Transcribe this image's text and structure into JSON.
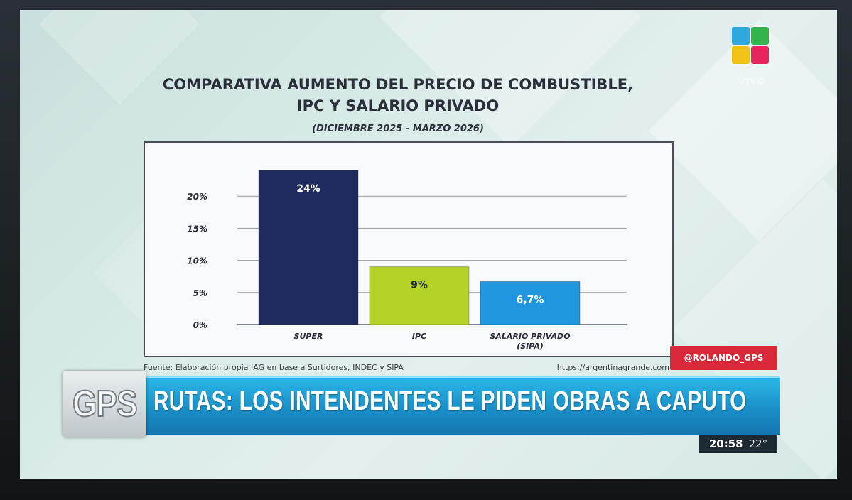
{
  "channel": {
    "logo_colors": [
      "#2fa8e0",
      "#33b34a",
      "#f2c21b",
      "#e6245e"
    ],
    "live_label": "VIVO"
  },
  "chart_header": {
    "title_line1": "COMPARATIVA AUMENTO DEL PRECIO DE COMBUSTIBLE,",
    "title_line2": "IPC Y SALARIO PRIVADO",
    "subtitle": "(DICIEMBRE 2025 - MARZO 2026)"
  },
  "chart_data": {
    "type": "bar",
    "title": "COMPARATIVA AUMENTO DEL PRECIO DE COMBUSTIBLE, IPC Y SALARIO PRIVADO",
    "subtitle": "(DICIEMBRE 2025 - MARZO 2026)",
    "categories": [
      [
        "SUPER"
      ],
      [
        "IPC"
      ],
      [
        "SALARIO PRIVADO",
        "(SIPA)"
      ]
    ],
    "values": [
      24,
      9,
      6.7
    ],
    "data_labels": [
      "24%",
      "9%",
      "6,7%"
    ],
    "colors": [
      "#1f2b5e",
      "#b5d228",
      "#2196e0"
    ],
    "label_colors": [
      "#ffffff",
      "#1f2b2e",
      "#ffffff"
    ],
    "yticks": [
      "0%",
      "5%",
      "10%",
      "15%",
      "20%"
    ],
    "ytick_values": [
      0,
      5,
      10,
      15,
      20
    ],
    "ylim": [
      0,
      25
    ],
    "grid": true,
    "xlabel": "",
    "ylabel": ""
  },
  "source": {
    "text": "Fuente: Elaboración propia IAG en base a Surtidores, INDEC y SIPA",
    "url": "https://argentinagrande.com"
  },
  "social_handle": "@ROLANDO_GPS",
  "lower_third": {
    "program": "GPS",
    "headline": "RUTAS: LOS INTENDENTES LE PIDEN OBRAS A CAPUTO"
  },
  "clock": {
    "time": "20:58",
    "temperature": "22°"
  }
}
